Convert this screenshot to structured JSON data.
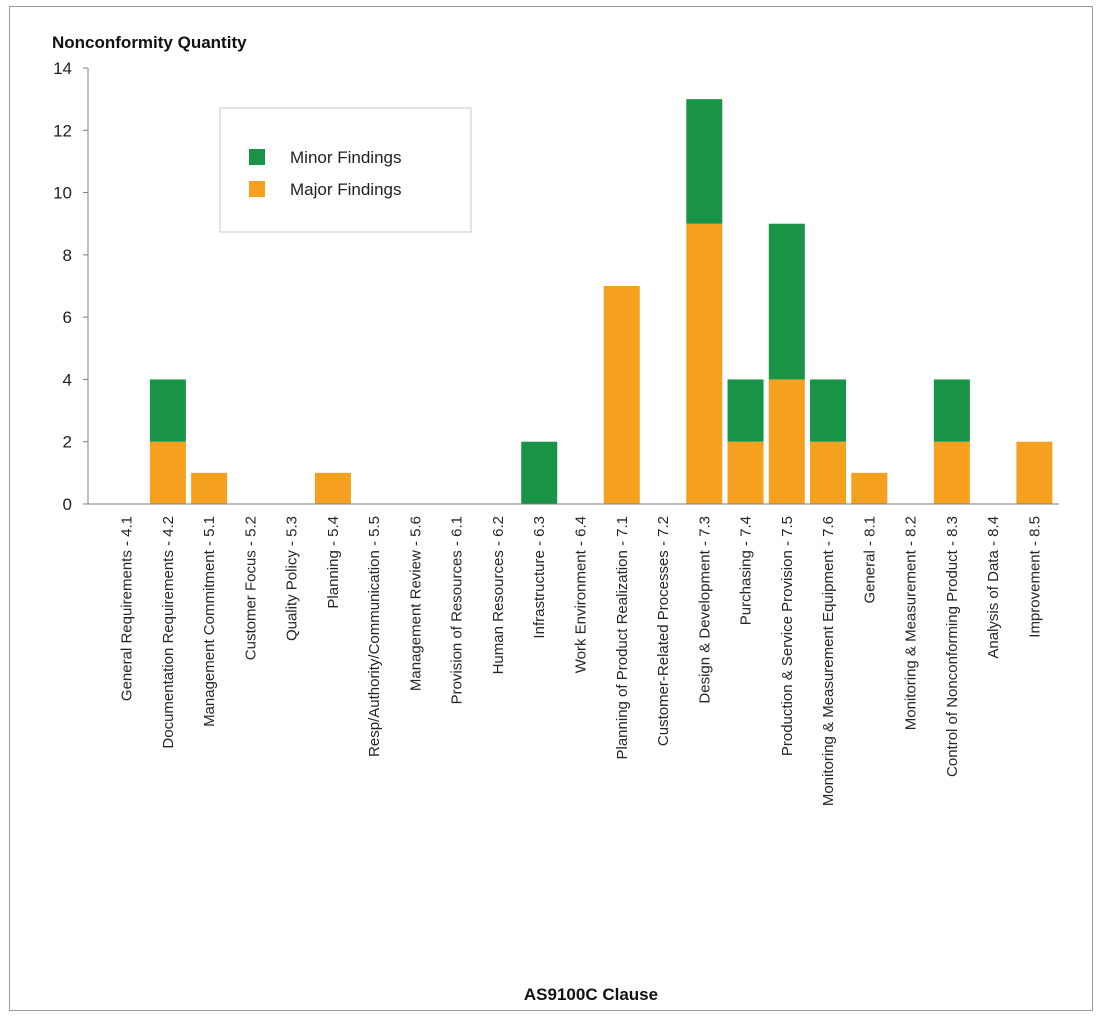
{
  "chart_data": {
    "type": "bar",
    "stacked": true,
    "title": "",
    "ylabel": "Nonconformity Quantity",
    "xlabel": "AS9100C Clause",
    "ylim": [
      0,
      14
    ],
    "yticks": [
      0,
      2,
      4,
      6,
      8,
      10,
      12,
      14
    ],
    "grid": false,
    "legend_position": "top-left",
    "categories": [
      "General Requirements - 4.1",
      "Documentation Requirements - 4.2",
      "Management Commitment - 5.1",
      "Customer Focus - 5.2",
      "Quality Policy - 5.3",
      "Planning - 5.4",
      "Resp/Authority/Communication - 5.5",
      "Management Review - 5.6",
      "Provision of Resources - 6.1",
      "Human Resources - 6.2",
      "Infrastructure - 6.3",
      "Work Environment - 6.4",
      "Planning of Product Realization - 7.1",
      "Customer-Related Processes - 7.2",
      "Design & Development - 7.3",
      "Purchasing - 7.4",
      "Production & Service Provision - 7.5",
      "Monitoring & Measurement Equipment - 7.6",
      "General - 8.1",
      "Monitoring & Measurement - 8.2",
      "Control of Nonconforming Product - 8.3",
      "Analysis of Data - 8.4",
      "Improvement - 8.5"
    ],
    "series": [
      {
        "name": "Major Findings",
        "color": "#F5A01E",
        "values": [
          0,
          2,
          1,
          0,
          0,
          1,
          0,
          0,
          0,
          0,
          0,
          0,
          7,
          0,
          9,
          2,
          4,
          2,
          1,
          0,
          2,
          0,
          2
        ]
      },
      {
        "name": "Minor Findings",
        "color": "#199447",
        "values": [
          0,
          2,
          0,
          0,
          0,
          0,
          0,
          0,
          0,
          0,
          2,
          0,
          0,
          0,
          4,
          2,
          5,
          2,
          0,
          0,
          2,
          0,
          0
        ]
      }
    ],
    "legend_order": [
      "Minor Findings",
      "Major Findings"
    ]
  }
}
